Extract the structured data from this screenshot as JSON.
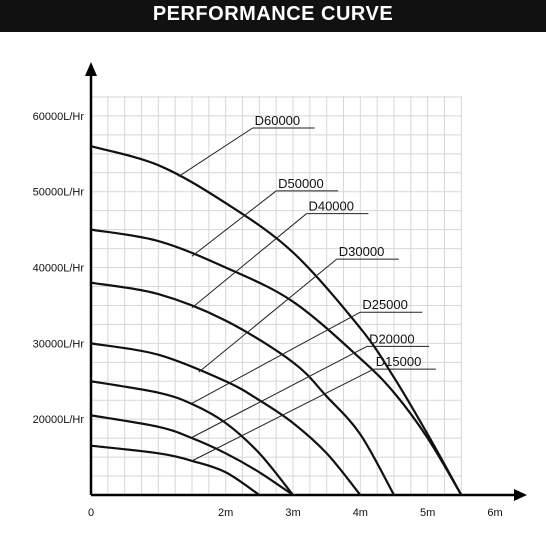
{
  "chart_data": {
    "type": "line",
    "title": "PERFORMANCE CURVE",
    "xlabel": "",
    "ylabel": "",
    "x_unit": "m",
    "y_unit": "L/Hr",
    "xlim": [
      0,
      6
    ],
    "ylim": [
      10000,
      65000
    ],
    "grid": true,
    "x_ticks": [
      {
        "value": 0,
        "label": "0"
      },
      {
        "value": 2,
        "label": "2m"
      },
      {
        "value": 3,
        "label": "3m"
      },
      {
        "value": 4,
        "label": "4m"
      },
      {
        "value": 5,
        "label": "5m"
      },
      {
        "value": 6,
        "label": "6m"
      }
    ],
    "y_ticks": [
      {
        "value": 20000,
        "label": "20000L/Hr"
      },
      {
        "value": 30000,
        "label": "30000L/Hr"
      },
      {
        "value": 40000,
        "label": "40000L/Hr"
      },
      {
        "value": 50000,
        "label": "50000L/Hr"
      },
      {
        "value": 60000,
        "label": "60000L/Hr"
      }
    ],
    "series": [
      {
        "name": "D60000",
        "x": [
          0,
          1,
          2,
          3,
          4,
          4.5,
          5,
          5.5
        ],
        "y": [
          56000,
          53500,
          48500,
          42000,
          32000,
          25500,
          18000,
          10000
        ]
      },
      {
        "name": "D50000",
        "x": [
          0,
          1,
          2,
          3,
          4,
          4.5,
          5,
          5.5
        ],
        "y": [
          45000,
          43500,
          40000,
          35500,
          28000,
          23500,
          17500,
          10000
        ]
      },
      {
        "name": "D40000",
        "x": [
          0,
          1,
          2,
          3,
          3.5,
          4,
          4.5
        ],
        "y": [
          38000,
          36500,
          33000,
          27500,
          23000,
          18000,
          10000
        ]
      },
      {
        "name": "D30000",
        "x": [
          0,
          1,
          2,
          2.5,
          3,
          3.5,
          4
        ],
        "y": [
          30000,
          28500,
          25000,
          22500,
          19500,
          15500,
          10000
        ]
      },
      {
        "name": "D25000",
        "x": [
          0,
          1,
          1.5,
          2,
          2.5,
          3
        ],
        "y": [
          25000,
          23500,
          22000,
          19500,
          15500,
          10000
        ]
      },
      {
        "name": "D20000",
        "x": [
          0,
          1,
          1.5,
          2,
          2.5,
          3
        ],
        "y": [
          20500,
          19000,
          17500,
          15500,
          13000,
          10000
        ]
      },
      {
        "name": "D15000",
        "x": [
          0,
          1,
          1.5,
          2,
          2.5
        ],
        "y": [
          16500,
          15500,
          14500,
          13000,
          10000
        ]
      }
    ],
    "annotations": [
      {
        "series": "D60000",
        "point": [
          1.3,
          52000
        ],
        "text_x": 2.4,
        "text_y": 58800
      },
      {
        "series": "D50000",
        "point": [
          1.5,
          41500
        ],
        "text_x": 2.75,
        "text_y": 50500
      },
      {
        "series": "D40000",
        "point": [
          1.5,
          34700
        ],
        "text_x": 3.2,
        "text_y": 47500
      },
      {
        "series": "D30000",
        "point": [
          1.6,
          26200
        ],
        "text_x": 3.65,
        "text_y": 41500
      },
      {
        "series": "D25000",
        "point": [
          1.5,
          22100
        ],
        "text_x": 4.0,
        "text_y": 34500
      },
      {
        "series": "D20000",
        "point": [
          1.5,
          17600
        ],
        "text_x": 4.1,
        "text_y": 30000
      },
      {
        "series": "D15000",
        "point": [
          1.5,
          14500
        ],
        "text_x": 4.2,
        "text_y": 27000
      }
    ]
  }
}
